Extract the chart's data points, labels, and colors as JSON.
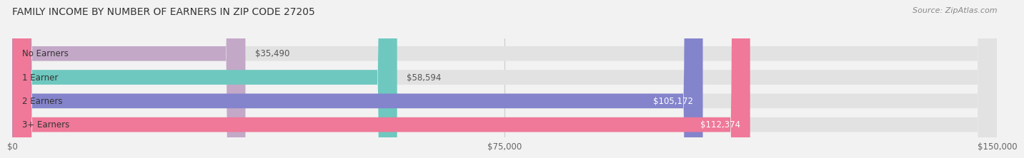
{
  "title": "FAMILY INCOME BY NUMBER OF EARNERS IN ZIP CODE 27205",
  "source": "Source: ZipAtlas.com",
  "categories": [
    "No Earners",
    "1 Earner",
    "2 Earners",
    "3+ Earners"
  ],
  "values": [
    35490,
    58594,
    105172,
    112374
  ],
  "bar_colors": [
    "#c4a8c8",
    "#6ec8c0",
    "#8484cc",
    "#f07898"
  ],
  "label_colors": [
    "#333333",
    "#333333",
    "#ffffff",
    "#ffffff"
  ],
  "xlim": [
    0,
    150000
  ],
  "xticks": [
    0,
    75000,
    150000
  ],
  "xtick_labels": [
    "$0",
    "$75,000",
    "$150,000"
  ],
  "value_labels": [
    "$35,490",
    "$58,594",
    "$105,172",
    "$112,374"
  ],
  "background_color": "#f2f2f2",
  "bar_background": "#e2e2e2",
  "title_fontsize": 10,
  "source_fontsize": 8
}
